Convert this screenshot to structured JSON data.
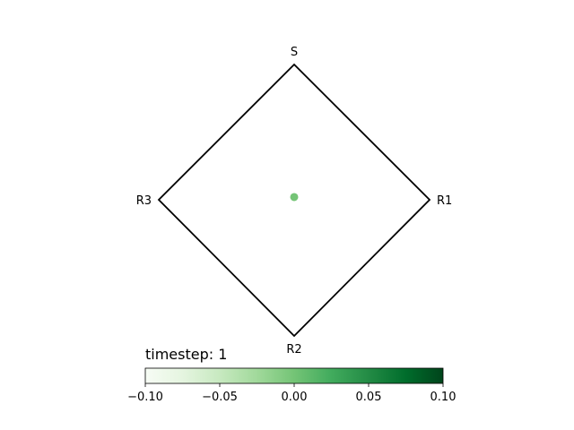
{
  "chart_data": {
    "type": "scatter",
    "title": "",
    "plot": "diamond-simplex",
    "vertices": [
      {
        "label": "S",
        "corner": "top"
      },
      {
        "label": "R1",
        "corner": "right"
      },
      {
        "label": "R2",
        "corner": "bottom"
      },
      {
        "label": "R3",
        "corner": "left"
      }
    ],
    "points": [
      {
        "x": 0.0,
        "y": 0.02,
        "value": 0.0,
        "color": "#74c476"
      }
    ],
    "annotation": "timestep: 1",
    "colorbar": {
      "colormap": "Greens",
      "orientation": "horizontal",
      "range": [
        -0.1,
        0.1
      ],
      "ticks": [
        -0.1,
        -0.05,
        0.0,
        0.05,
        0.1
      ],
      "tick_labels": [
        "−0.10",
        "−0.05",
        "0.00",
        "0.05",
        "0.10"
      ],
      "colors": [
        "#f7fcf5",
        "#e5f5e0",
        "#c7e9c0",
        "#a1d99b",
        "#74c476",
        "#41ab5d",
        "#238b45",
        "#006d2c",
        "#00441b"
      ]
    }
  }
}
